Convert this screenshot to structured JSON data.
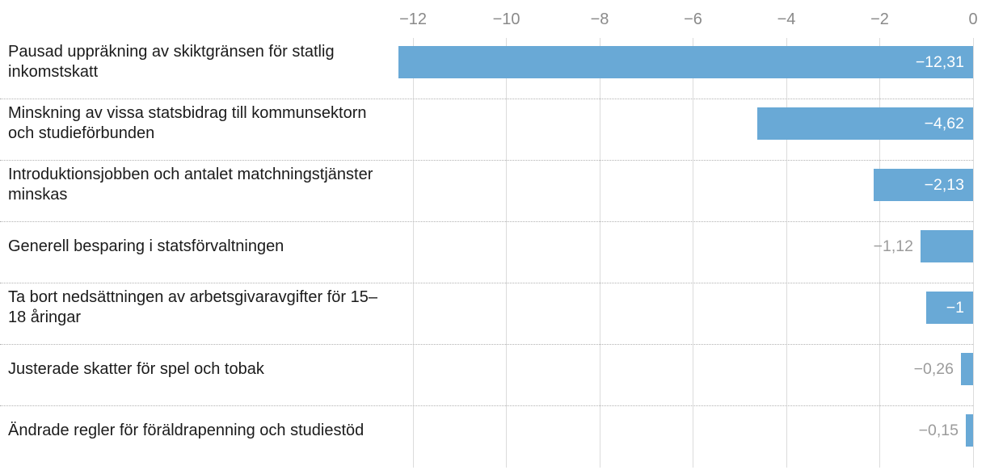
{
  "chart_data": {
    "type": "bar",
    "orientation": "horizontal",
    "title": "",
    "categories": [
      "Pausad uppräkning av skiktgränsen för statlig inkomstskatt",
      "Minskning av vissa statsbidrag till kommunsektorn och studieförbunden",
      "Introduktionsjobben och antalet matchningstjänster minskas",
      "Generell besparing i statsförvaltningen",
      "Ta bort nedsättningen av arbetsgivaravgifter för 15–18 åringar",
      "Justerade skatter för spel och tobak",
      "Ändrade regler för föräldrapenning och studiestöd"
    ],
    "values": [
      -12.31,
      -4.62,
      -2.13,
      -1.12,
      -1,
      -0.26,
      -0.15
    ],
    "value_labels": [
      "−12,31",
      "−4,62",
      "−2,13",
      "−1,12",
      "−1",
      "−0,26",
      "−0,15"
    ],
    "x_ticks": [
      -12,
      -10,
      -8,
      -6,
      -4,
      -2,
      0
    ],
    "x_tick_labels": [
      "−12",
      "−10",
      "−8",
      "−6",
      "−4",
      "−2",
      "0"
    ],
    "xlim": [
      -12.33,
      0
    ],
    "grid": true,
    "legend": false,
    "bar_color": "#69a9d6",
    "label_inside_color": "#ffffff",
    "label_outside_color": "#9b9b9b",
    "tick_color": "#8a8a8a",
    "category_color": "#1b1b1b"
  }
}
